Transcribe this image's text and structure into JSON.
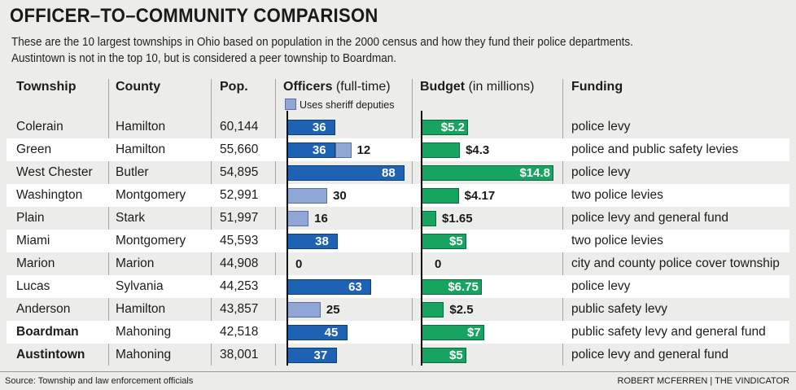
{
  "title": "OFFICER–TO–COMMUNITY COMPARISON",
  "subtitle": [
    "These are the 10 largest townships in Ohio based on population in the 2000 census and how they fund their police departments.",
    "Austintown is not in the top 10, but is considered a peer township to Boardman."
  ],
  "headers": {
    "township": "Township",
    "county": "County",
    "pop": "Pop.",
    "officers": "Officers",
    "officers_note": "(full-time)",
    "legend": "Uses sheriff deputies",
    "budget": "Budget",
    "budget_note": "(in millions)",
    "funding": "Funding"
  },
  "colors": {
    "officers": "#1d62b3",
    "deputies": "#8fa7d6",
    "budget": "#17a360"
  },
  "chart_data": {
    "type": "table",
    "officer_axis_max": 88,
    "budget_axis_max": 14.8,
    "rows": [
      {
        "township": "Colerain",
        "county": "Hamilton",
        "pop": "60,144",
        "officers": 36,
        "officers_label": "36",
        "deputies": 0,
        "deputies_label": "",
        "budget": 5.2,
        "budget_label": "$5.2",
        "funding": "police levy",
        "bold": false
      },
      {
        "township": "Green",
        "county": "Hamilton",
        "pop": "55,660",
        "officers": 36,
        "officers_label": "36",
        "deputies": 12,
        "deputies_label": "12",
        "budget": 4.3,
        "budget_label": "$4.3",
        "funding": "police and public safety levies",
        "bold": false
      },
      {
        "township": "West Chester",
        "county": "Butler",
        "pop": "54,895",
        "officers": 88,
        "officers_label": "88",
        "deputies": 0,
        "deputies_label": "",
        "budget": 14.8,
        "budget_label": "$14.8",
        "funding": "police levy",
        "bold": false
      },
      {
        "township": "Washington",
        "county": "Montgomery",
        "pop": "52,991",
        "officers": 0,
        "officers_label": "",
        "deputies": 30,
        "deputies_label": "30",
        "budget": 4.17,
        "budget_label": "$4.17",
        "funding": "two police levies",
        "bold": false
      },
      {
        "township": "Plain",
        "county": "Stark",
        "pop": "51,997",
        "officers": 0,
        "officers_label": "",
        "deputies": 16,
        "deputies_label": "16",
        "budget": 1.65,
        "budget_label": "$1.65",
        "funding": "police levy and general fund",
        "bold": false
      },
      {
        "township": "Miami",
        "county": "Montgomery",
        "pop": "45,593",
        "officers": 38,
        "officers_label": "38",
        "deputies": 0,
        "deputies_label": "",
        "budget": 5,
        "budget_label": "$5",
        "funding": "two police levies",
        "bold": false
      },
      {
        "township": "Marion",
        "county": "Marion",
        "pop": "44,908",
        "officers": 0,
        "officers_label": "0",
        "deputies": 0,
        "deputies_label": "",
        "budget": 0,
        "budget_label": "0",
        "funding": "city and county police cover township",
        "bold": false
      },
      {
        "township": "Lucas",
        "county": "Sylvania",
        "pop": "44,253",
        "officers": 63,
        "officers_label": "63",
        "deputies": 0,
        "deputies_label": "",
        "budget": 6.75,
        "budget_label": "$6.75",
        "funding": "police levy",
        "bold": false
      },
      {
        "township": "Anderson",
        "county": "Hamilton",
        "pop": "43,857",
        "officers": 0,
        "officers_label": "",
        "deputies": 25,
        "deputies_label": "25",
        "budget": 2.5,
        "budget_label": "$2.5",
        "funding": "public safety levy",
        "bold": false
      },
      {
        "township": "Boardman",
        "county": "Mahoning",
        "pop": "42,518",
        "officers": 45,
        "officers_label": "45",
        "deputies": 0,
        "deputies_label": "",
        "budget": 7,
        "budget_label": "$7",
        "funding": "public safety levy and general fund",
        "bold": true
      },
      {
        "township": "Austintown",
        "county": "Mahoning",
        "pop": "38,001",
        "officers": 37,
        "officers_label": "37",
        "deputies": 0,
        "deputies_label": "",
        "budget": 5,
        "budget_label": "$5",
        "funding": "police levy and general fund",
        "bold": true
      }
    ]
  },
  "footer": {
    "source": "Source:  Township and law enforcement officials",
    "credit": "ROBERT MCFERREN | THE VINDICATOR"
  }
}
